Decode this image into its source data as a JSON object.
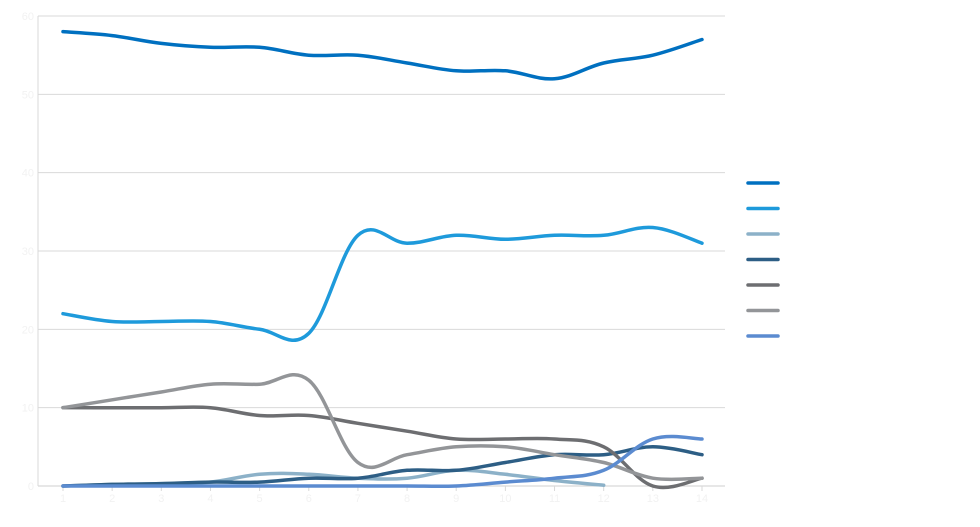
{
  "chart_data": {
    "type": "line",
    "title": "",
    "xlabel": "",
    "ylabel": "",
    "x": [
      1,
      2,
      3,
      4,
      5,
      6,
      7,
      8,
      9,
      10,
      11,
      12,
      13,
      14
    ],
    "ylim": [
      0,
      60
    ],
    "yticks": [
      0,
      10,
      20,
      30,
      40,
      50,
      60
    ],
    "grid": true,
    "legend_position": "right",
    "series": [
      {
        "color": "#0070C0",
        "values": [
          58,
          57.5,
          56.5,
          56,
          56,
          55,
          55,
          54,
          53,
          53,
          52,
          54,
          55,
          57
        ]
      },
      {
        "color": "#1E9ADB",
        "values": [
          22,
          21,
          21,
          21,
          20,
          19.5,
          32,
          31,
          32,
          31.5,
          32,
          32,
          33,
          31
        ]
      },
      {
        "color": "#8CB1C8",
        "values": [
          0,
          0.2,
          0.3,
          0.5,
          1.5,
          1.5,
          1,
          1,
          2,
          1.5,
          0.7,
          0.1,
          null,
          null
        ]
      },
      {
        "color": "#2D5E85",
        "values": [
          0,
          0.2,
          0.3,
          0.5,
          0.5,
          1,
          1,
          2,
          2,
          3,
          4,
          4,
          5,
          4
        ]
      },
      {
        "color": "#6D6E71",
        "values": [
          10,
          10,
          10,
          10,
          9,
          9,
          8,
          7,
          6,
          6,
          6,
          5,
          0,
          1
        ]
      },
      {
        "color": "#939598",
        "values": [
          10,
          11,
          12,
          13,
          13,
          13.5,
          3,
          4,
          5,
          5,
          4,
          3,
          1,
          1
        ]
      },
      {
        "color": "#5B8BD0",
        "values": [
          0,
          0,
          0,
          0,
          0,
          0,
          0,
          0,
          0,
          0.5,
          1,
          2,
          6,
          6
        ]
      }
    ]
  }
}
